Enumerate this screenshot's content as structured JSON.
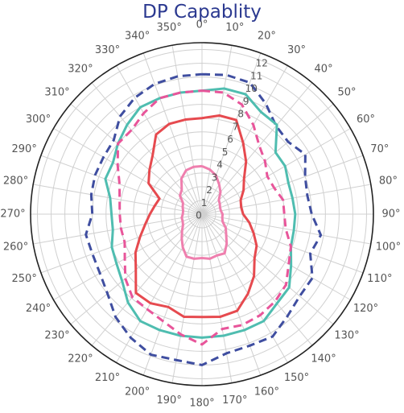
{
  "chart_data": {
    "type": "line",
    "title": "DP Capablity",
    "projection": "polar",
    "theta_direction": "clockwise",
    "theta_zero": "N",
    "theta_ticks": [
      "0°",
      "10°",
      "20°",
      "30°",
      "40°",
      "50°",
      "60°",
      "70°",
      "80°",
      "90°",
      "100°",
      "110°",
      "120°",
      "130°",
      "140°",
      "150°",
      "160°",
      "170°",
      "180°",
      "190°",
      "200°",
      "210°",
      "220°",
      "230°",
      "240°",
      "250°",
      "260°",
      "270°",
      "280°",
      "290°",
      "300°",
      "310°",
      "320°",
      "330°",
      "340°",
      "350°"
    ],
    "r_ticks": [
      "0",
      "1",
      "2",
      "3",
      "4",
      "5",
      "6",
      "7",
      "8",
      "9",
      "10",
      "11",
      "12"
    ],
    "rlim": [
      0,
      12.5
    ],
    "grid": true,
    "theta": [
      0,
      10,
      20,
      30,
      40,
      50,
      60,
      70,
      80,
      90,
      100,
      110,
      120,
      130,
      140,
      150,
      160,
      170,
      180,
      190,
      200,
      210,
      220,
      230,
      240,
      250,
      260,
      270,
      280,
      290,
      300,
      310,
      320,
      330,
      340,
      350
    ],
    "series": [
      {
        "style": "dashed",
        "color": "#3f4ea0",
        "values": [
          10.2,
          10.3,
          10.2,
          9.3,
          8.4,
          8.2,
          8.7,
          8.0,
          7.8,
          8.0,
          8.8,
          8.4,
          9.3,
          9.3,
          9.7,
          10.3,
          10.2,
          10.3,
          11.0,
          10.8,
          10.9,
          10.4,
          9.8,
          9.0,
          8.6,
          8.5,
          8.6,
          8.0,
          8.2,
          8.3,
          8.3,
          8.4,
          9.3,
          9.8,
          10.1,
          10.2
        ]
      },
      {
        "style": "solid",
        "color": "#4fbdb0",
        "values": [
          9.0,
          9.3,
          9.3,
          8.6,
          8.5,
          7.0,
          7.0,
          6.7,
          6.7,
          6.8,
          6.8,
          6.9,
          7.5,
          8.3,
          8.5,
          9.0,
          9.0,
          9.0,
          9.0,
          9.0,
          9.0,
          9.0,
          8.4,
          7.6,
          7.2,
          7.0,
          6.6,
          6.6,
          6.8,
          7.5,
          7.5,
          8.0,
          8.5,
          9.0,
          9.0,
          9.0
        ]
      },
      {
        "style": "dashed",
        "color": "#e8559a",
        "values": [
          9.0,
          9.0,
          8.5,
          7.5,
          6.5,
          6.0,
          5.5,
          5.6,
          6.0,
          6.0,
          6.2,
          6.9,
          7.3,
          8.0,
          8.3,
          8.5,
          8.6,
          8.5,
          9.5,
          8.9,
          8.3,
          8.0,
          7.9,
          7.3,
          6.5,
          6.0,
          6.0,
          6.0,
          6.1,
          6.4,
          7.1,
          8.0,
          8.0,
          8.5,
          9.0,
          9.0
        ]
      },
      {
        "style": "solid",
        "color": "#e64a4f",
        "values": [
          7.0,
          7.3,
          7.3,
          6.0,
          5.0,
          4.0,
          3.5,
          3.0,
          2.9,
          3.0,
          3.5,
          4.0,
          4.6,
          5.0,
          5.9,
          6.7,
          7.5,
          7.6,
          7.5,
          7.6,
          7.2,
          7.5,
          7.5,
          6.3,
          5.6,
          4.8,
          4.2,
          3.8,
          3.5,
          3.3,
          4.5,
          5.0,
          5.6,
          6.7,
          7.0,
          7.0
        ]
      },
      {
        "style": "solid",
        "color": "#ef7fae",
        "values": [
          3.5,
          3.3,
          3.0,
          2.5,
          2.1,
          1.6,
          1.5,
          1.4,
          1.4,
          1.5,
          1.5,
          1.6,
          2.0,
          2.3,
          2.8,
          3.3,
          3.2,
          3.3,
          3.2,
          3.3,
          3.3,
          2.8,
          2.3,
          1.9,
          1.6,
          1.5,
          1.5,
          1.4,
          1.4,
          1.5,
          1.6,
          2.1,
          2.3,
          3.0,
          3.4,
          3.5
        ]
      }
    ]
  }
}
